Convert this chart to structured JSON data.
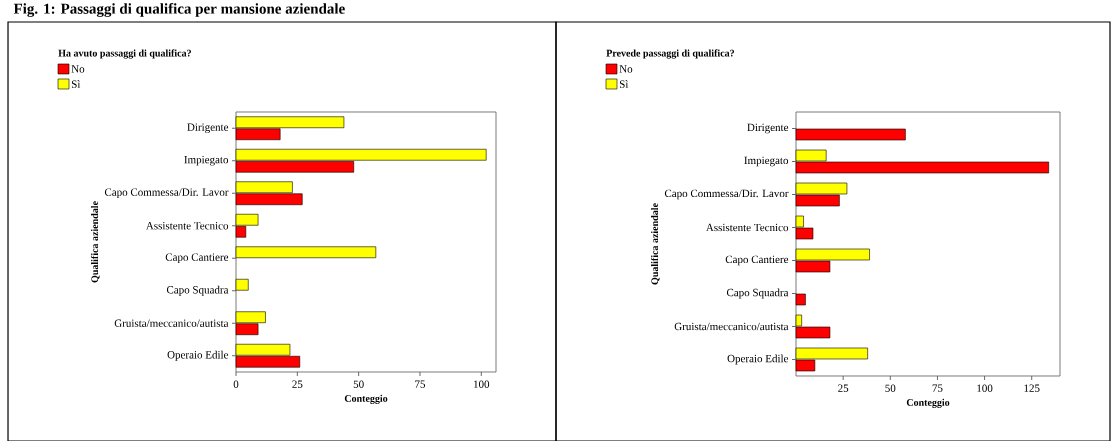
{
  "chart_data": [
    {
      "type": "bar",
      "orientation": "horizontal",
      "title": "Fig. 1: Passaggi di qualifica per mansione aziendale",
      "legend_title": "Ha avuto passaggi di qualifica?",
      "xlabel": "Conteggio",
      "ylabel": "Qualifica aziendale",
      "legend": "top left",
      "grid": false,
      "categories": [
        "Dirigente",
        "Impiegato",
        "Capo Commessa/Dir. Lavor",
        "Assistente Tecnico",
        "Capo Cantiere",
        "Capo Squadra",
        "Gruista/meccanico/autista",
        "Operaio Edile"
      ],
      "series": [
        {
          "name": "No",
          "color": "#ff0000",
          "values": [
            18,
            48,
            27,
            4,
            null,
            null,
            9,
            26
          ]
        },
        {
          "name": "Sì",
          "color": "#ffff00",
          "values": [
            44,
            102,
            23,
            9,
            57,
            5,
            12,
            22
          ]
        }
      ],
      "xlim": [
        0,
        106
      ],
      "xticks": [
        0,
        25,
        50,
        75,
        100
      ]
    },
    {
      "type": "bar",
      "orientation": "horizontal",
      "legend_title": "Prevede passaggi di qualifica?",
      "xlabel": "Conteggio",
      "ylabel": "Qualifica aziendale",
      "legend": "top left",
      "grid": false,
      "categories": [
        "Dirigente",
        "Impiegato",
        "Capo Commessa/Dir. Lavor",
        "Assistente Tecnico",
        "Capo Cantiere",
        "Capo Squadra",
        "Gruista/meccanico/autista",
        "Operaio Edile"
      ],
      "series": [
        {
          "name": "No",
          "color": "#ff0000",
          "values": [
            58,
            134,
            23,
            9,
            18,
            5,
            18,
            10
          ]
        },
        {
          "name": "Sì",
          "color": "#ffff00",
          "values": [
            null,
            16,
            27,
            4,
            39,
            null,
            3,
            38
          ]
        }
      ],
      "xlim": [
        0,
        140
      ],
      "xticks": [
        25,
        50,
        75,
        100,
        125
      ]
    }
  ]
}
